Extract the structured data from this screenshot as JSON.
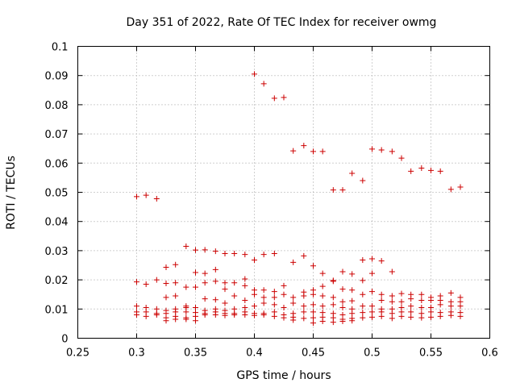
{
  "chart_data": {
    "type": "scatter",
    "title": "Day 351 of 2022, Rate Of TEC Index for receiver owmg",
    "xlabel": "GPS time / hours",
    "ylabel": "ROTI / TECUs",
    "xlim": [
      0.25,
      0.6
    ],
    "ylim": [
      0,
      0.1
    ],
    "xticks": [
      "0.25",
      "0.3",
      "0.35",
      "0.4",
      "0.45",
      "0.5",
      "0.55",
      "0.6"
    ],
    "yticks": [
      "0",
      "0.01",
      "0.02",
      "0.03",
      "0.04",
      "0.05",
      "0.06",
      "0.07",
      "0.08",
      "0.09",
      "0.1"
    ],
    "grid": true,
    "marker": "plus",
    "color": "#cc0000",
    "points": [
      [
        0.3,
        0.0485
      ],
      [
        0.308,
        0.049
      ],
      [
        0.317,
        0.0478
      ],
      [
        0.4,
        0.0905
      ],
      [
        0.408,
        0.0872
      ],
      [
        0.417,
        0.0822
      ],
      [
        0.425,
        0.0825
      ],
      [
        0.433,
        0.0642
      ],
      [
        0.442,
        0.066
      ],
      [
        0.45,
        0.064
      ],
      [
        0.458,
        0.064
      ],
      [
        0.467,
        0.0508
      ],
      [
        0.475,
        0.0508
      ],
      [
        0.483,
        0.0565
      ],
      [
        0.492,
        0.054
      ],
      [
        0.5,
        0.0648
      ],
      [
        0.508,
        0.0645
      ],
      [
        0.517,
        0.064
      ],
      [
        0.525,
        0.0617
      ],
      [
        0.533,
        0.0572
      ],
      [
        0.542,
        0.0583
      ],
      [
        0.55,
        0.0575
      ],
      [
        0.558,
        0.0572
      ],
      [
        0.567,
        0.051
      ],
      [
        0.575,
        0.0518
      ],
      [
        0.342,
        0.0315
      ],
      [
        0.35,
        0.0302
      ],
      [
        0.358,
        0.0303
      ],
      [
        0.367,
        0.0298
      ],
      [
        0.375,
        0.029
      ],
      [
        0.383,
        0.029
      ],
      [
        0.392,
        0.0287
      ],
      [
        0.4,
        0.0268
      ],
      [
        0.408,
        0.0287
      ],
      [
        0.417,
        0.029
      ],
      [
        0.433,
        0.026
      ],
      [
        0.442,
        0.0282
      ],
      [
        0.45,
        0.0248
      ],
      [
        0.458,
        0.0222
      ],
      [
        0.467,
        0.0198
      ],
      [
        0.475,
        0.0228
      ],
      [
        0.483,
        0.022
      ],
      [
        0.492,
        0.0268
      ],
      [
        0.5,
        0.0272
      ],
      [
        0.508,
        0.0265
      ],
      [
        0.517,
        0.0228
      ],
      [
        0.325,
        0.0243
      ],
      [
        0.333,
        0.0252
      ],
      [
        0.35,
        0.0225
      ],
      [
        0.358,
        0.0222
      ],
      [
        0.367,
        0.0235
      ],
      [
        0.3,
        0.0193
      ],
      [
        0.308,
        0.0185
      ],
      [
        0.317,
        0.02
      ],
      [
        0.325,
        0.0188
      ],
      [
        0.333,
        0.019
      ],
      [
        0.342,
        0.0175
      ],
      [
        0.35,
        0.0175
      ],
      [
        0.358,
        0.019
      ],
      [
        0.367,
        0.0195
      ],
      [
        0.375,
        0.019
      ],
      [
        0.383,
        0.019
      ],
      [
        0.392,
        0.0203
      ],
      [
        0.375,
        0.0168
      ],
      [
        0.392,
        0.018
      ],
      [
        0.4,
        0.0165
      ],
      [
        0.408,
        0.0165
      ],
      [
        0.417,
        0.016
      ],
      [
        0.425,
        0.018
      ],
      [
        0.442,
        0.0158
      ],
      [
        0.45,
        0.0165
      ],
      [
        0.458,
        0.0178
      ],
      [
        0.467,
        0.0195
      ],
      [
        0.475,
        0.0168
      ],
      [
        0.483,
        0.0165
      ],
      [
        0.492,
        0.0198
      ],
      [
        0.5,
        0.0222
      ],
      [
        0.5,
        0.016
      ],
      [
        0.508,
        0.015
      ],
      [
        0.517,
        0.0145
      ],
      [
        0.525,
        0.0153
      ],
      [
        0.533,
        0.015
      ],
      [
        0.542,
        0.015
      ],
      [
        0.55,
        0.014
      ],
      [
        0.558,
        0.0145
      ],
      [
        0.567,
        0.0155
      ],
      [
        0.575,
        0.014
      ],
      [
        0.325,
        0.014
      ],
      [
        0.333,
        0.0145
      ],
      [
        0.342,
        0.0105
      ],
      [
        0.358,
        0.0135
      ],
      [
        0.367,
        0.0132
      ],
      [
        0.375,
        0.012
      ],
      [
        0.383,
        0.0145
      ],
      [
        0.392,
        0.013
      ],
      [
        0.4,
        0.015
      ],
      [
        0.408,
        0.014
      ],
      [
        0.417,
        0.014
      ],
      [
        0.425,
        0.015
      ],
      [
        0.433,
        0.014
      ],
      [
        0.442,
        0.0145
      ],
      [
        0.45,
        0.015
      ],
      [
        0.458,
        0.0145
      ],
      [
        0.467,
        0.014
      ],
      [
        0.475,
        0.0125
      ],
      [
        0.483,
        0.0128
      ],
      [
        0.492,
        0.015
      ],
      [
        0.508,
        0.013
      ],
      [
        0.517,
        0.0125
      ],
      [
        0.525,
        0.0125
      ],
      [
        0.533,
        0.0135
      ],
      [
        0.542,
        0.013
      ],
      [
        0.55,
        0.013
      ],
      [
        0.558,
        0.013
      ],
      [
        0.567,
        0.0125
      ],
      [
        0.575,
        0.0125
      ],
      [
        0.3,
        0.011
      ],
      [
        0.308,
        0.0105
      ],
      [
        0.317,
        0.01
      ],
      [
        0.325,
        0.0095
      ],
      [
        0.333,
        0.01
      ],
      [
        0.342,
        0.011
      ],
      [
        0.35,
        0.0105
      ],
      [
        0.358,
        0.0095
      ],
      [
        0.367,
        0.01
      ],
      [
        0.375,
        0.0095
      ],
      [
        0.383,
        0.01
      ],
      [
        0.392,
        0.0105
      ],
      [
        0.4,
        0.011
      ],
      [
        0.408,
        0.012
      ],
      [
        0.417,
        0.0115
      ],
      [
        0.425,
        0.0105
      ],
      [
        0.433,
        0.012
      ],
      [
        0.442,
        0.011
      ],
      [
        0.45,
        0.0115
      ],
      [
        0.458,
        0.011
      ],
      [
        0.467,
        0.0115
      ],
      [
        0.475,
        0.0105
      ],
      [
        0.483,
        0.01
      ],
      [
        0.492,
        0.011
      ],
      [
        0.5,
        0.011
      ],
      [
        0.508,
        0.01
      ],
      [
        0.517,
        0.01
      ],
      [
        0.525,
        0.0105
      ],
      [
        0.533,
        0.011
      ],
      [
        0.542,
        0.0105
      ],
      [
        0.55,
        0.0105
      ],
      [
        0.558,
        0.0115
      ],
      [
        0.567,
        0.011
      ],
      [
        0.575,
        0.011
      ],
      [
        0.3,
        0.009
      ],
      [
        0.308,
        0.009
      ],
      [
        0.317,
        0.0085
      ],
      [
        0.325,
        0.0085
      ],
      [
        0.333,
        0.009
      ],
      [
        0.342,
        0.009
      ],
      [
        0.35,
        0.0088
      ],
      [
        0.358,
        0.0085
      ],
      [
        0.367,
        0.009
      ],
      [
        0.375,
        0.0085
      ],
      [
        0.383,
        0.0085
      ],
      [
        0.392,
        0.009
      ],
      [
        0.4,
        0.0085
      ],
      [
        0.408,
        0.0085
      ],
      [
        0.417,
        0.009
      ],
      [
        0.425,
        0.008
      ],
      [
        0.433,
        0.0085
      ],
      [
        0.442,
        0.009
      ],
      [
        0.45,
        0.009
      ],
      [
        0.458,
        0.0088
      ],
      [
        0.467,
        0.0085
      ],
      [
        0.475,
        0.008
      ],
      [
        0.483,
        0.0085
      ],
      [
        0.492,
        0.0088
      ],
      [
        0.5,
        0.009
      ],
      [
        0.508,
        0.009
      ],
      [
        0.517,
        0.0085
      ],
      [
        0.525,
        0.009
      ],
      [
        0.533,
        0.009
      ],
      [
        0.542,
        0.0085
      ],
      [
        0.55,
        0.009
      ],
      [
        0.558,
        0.0088
      ],
      [
        0.567,
        0.009
      ],
      [
        0.575,
        0.0088
      ],
      [
        0.3,
        0.008
      ],
      [
        0.308,
        0.0075
      ],
      [
        0.317,
        0.008
      ],
      [
        0.325,
        0.007
      ],
      [
        0.333,
        0.0075
      ],
      [
        0.342,
        0.007
      ],
      [
        0.35,
        0.0075
      ],
      [
        0.358,
        0.008
      ],
      [
        0.367,
        0.008
      ],
      [
        0.375,
        0.0078
      ],
      [
        0.383,
        0.008
      ],
      [
        0.392,
        0.008
      ],
      [
        0.4,
        0.0078
      ],
      [
        0.408,
        0.008
      ],
      [
        0.417,
        0.0075
      ],
      [
        0.425,
        0.007
      ],
      [
        0.433,
        0.0072
      ],
      [
        0.442,
        0.0068
      ],
      [
        0.45,
        0.007
      ],
      [
        0.458,
        0.0072
      ],
      [
        0.467,
        0.007
      ],
      [
        0.475,
        0.0065
      ],
      [
        0.483,
        0.0068
      ],
      [
        0.492,
        0.007
      ],
      [
        0.5,
        0.0072
      ],
      [
        0.508,
        0.0075
      ],
      [
        0.517,
        0.0068
      ],
      [
        0.525,
        0.0075
      ],
      [
        0.533,
        0.0072
      ],
      [
        0.542,
        0.007
      ],
      [
        0.55,
        0.0072
      ],
      [
        0.558,
        0.0075
      ],
      [
        0.567,
        0.0078
      ],
      [
        0.575,
        0.0075
      ],
      [
        0.325,
        0.006
      ],
      [
        0.333,
        0.0065
      ],
      [
        0.342,
        0.0065
      ],
      [
        0.35,
        0.006
      ],
      [
        0.433,
        0.0062
      ],
      [
        0.45,
        0.0052
      ],
      [
        0.458,
        0.0058
      ],
      [
        0.467,
        0.0055
      ],
      [
        0.475,
        0.0058
      ],
      [
        0.483,
        0.006
      ]
    ]
  }
}
